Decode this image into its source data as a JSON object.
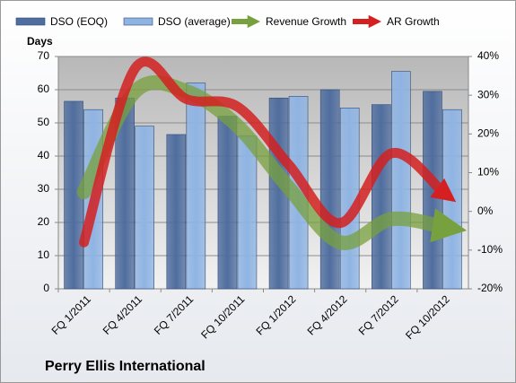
{
  "chart_data": {
    "type": "bar_line",
    "title": "Perry Ellis International",
    "y_label": "Days",
    "categories": [
      "FQ 1/2011",
      "FQ 4/2011",
      "FQ 7/2011",
      "FQ 10/2011",
      "FQ 1/2012",
      "FQ 4/2012",
      "FQ 7/2012",
      "FQ 10/2012"
    ],
    "series": [
      {
        "name": "DSO (EOQ)",
        "color": "#4f6d9e",
        "kind": "bar",
        "values": [
          56.5,
          57.5,
          46.5,
          52,
          57.5,
          60,
          55.5,
          59.5
        ]
      },
      {
        "name": "DSO (average)",
        "color": "#8fb4e3",
        "kind": "bar",
        "values": [
          54,
          49,
          62,
          46,
          58,
          54.5,
          65.5,
          54
        ]
      },
      {
        "name": "Revenue Growth",
        "color": "#77a03e",
        "kind": "line",
        "axis": "y2",
        "values": [
          5,
          31,
          31,
          22,
          6,
          -8,
          -2,
          -4
        ]
      },
      {
        "name": "AR Growth",
        "color": "#d42020",
        "kind": "line",
        "axis": "y2",
        "values": [
          -8,
          37,
          29,
          27,
          12,
          -3,
          15,
          5
        ]
      }
    ],
    "ylim": [
      0,
      70
    ],
    "yticks": [
      0,
      10,
      20,
      30,
      40,
      50,
      60,
      70
    ],
    "y2lim": [
      -20,
      40
    ],
    "y2ticks": [
      {
        "value": -20,
        "label": "-20%"
      },
      {
        "value": -10,
        "label": "-10%"
      },
      {
        "value": 0,
        "label": "0%"
      },
      {
        "value": 10,
        "label": "10%"
      },
      {
        "value": 20,
        "label": "20%"
      },
      {
        "value": 30,
        "label": "30%"
      },
      {
        "value": 40,
        "label": "40%"
      }
    ],
    "grid": true
  }
}
